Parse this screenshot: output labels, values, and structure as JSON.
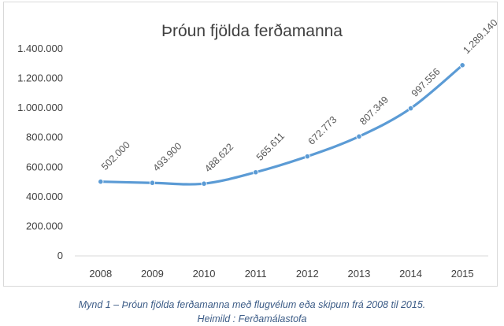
{
  "chart_data": {
    "type": "line",
    "title": "Þróun fjölda ferðamanna",
    "categories": [
      "2008",
      "2009",
      "2010",
      "2011",
      "2012",
      "2013",
      "2014",
      "2015"
    ],
    "series": [
      {
        "values": [
          502000,
          493900,
          488622,
          565611,
          672773,
          807349,
          997556,
          1289140
        ],
        "labels": [
          "502.000",
          "493.900",
          "488.622",
          "565.611",
          "672.773",
          "807.349",
          "997.556",
          "1.289.140"
        ]
      }
    ],
    "y_ticks": [
      0,
      200000,
      400000,
      600000,
      800000,
      1000000,
      1200000,
      1400000
    ],
    "y_tick_labels": [
      "0",
      "200.000",
      "400.000",
      "600.000",
      "800.000",
      "1.000.000",
      "1.200.000",
      "1.400.000"
    ],
    "ylim": [
      0,
      1400000
    ],
    "grid": false,
    "colors": {
      "line": "#5b9bd5",
      "marker": "#5b9bd5"
    }
  },
  "caption": {
    "line1": "Mynd 1 –  Þróun fjölda ferðamanna með flugvélum eða skipum frá  2008  til 2015.",
    "line2": "Heimild : Ferðamálastofa"
  }
}
